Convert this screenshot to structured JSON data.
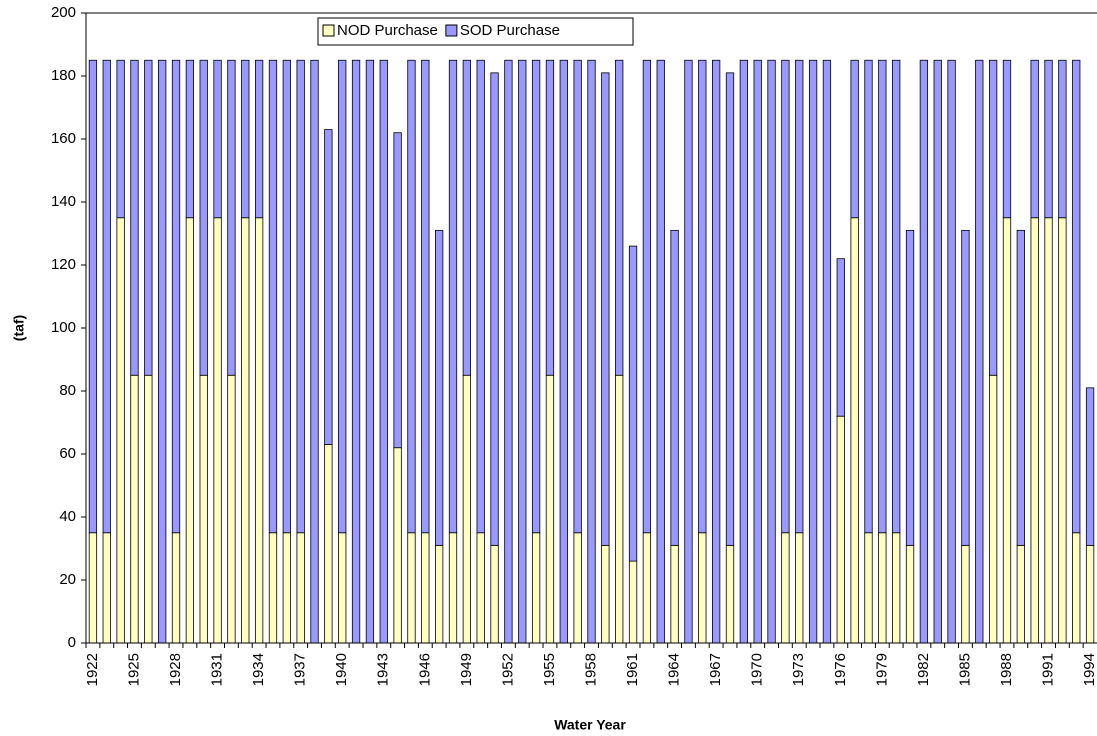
{
  "chart_data": {
    "type": "stacked-bar",
    "x_label": "Water Year",
    "y_label": "(taf)",
    "categories": [
      "1922",
      null,
      null,
      "1925",
      null,
      null,
      "1928",
      null,
      null,
      "1931",
      null,
      null,
      "1934",
      null,
      null,
      "1937",
      null,
      null,
      "1940",
      null,
      null,
      "1943",
      null,
      null,
      "1946",
      null,
      null,
      "1949",
      null,
      null,
      "1952",
      null,
      null,
      "1955",
      null,
      null,
      "1958",
      null,
      null,
      "1961",
      null,
      null,
      "1964",
      null,
      null,
      "1967",
      null,
      null,
      "1970",
      null,
      null,
      "1973",
      null,
      null,
      "1976",
      null,
      null,
      "1979",
      null,
      null,
      "1982",
      null,
      null,
      "1985",
      null,
      null,
      "1988",
      null,
      null,
      "1991",
      null,
      null,
      "1994"
    ],
    "series": [
      {
        "name": "NOD Purchase",
        "color": "#ffffc0",
        "values": [
          35,
          35,
          135,
          85,
          85,
          0,
          35,
          135,
          85,
          135,
          85,
          135,
          135,
          35,
          35,
          35,
          0,
          63,
          35,
          0,
          0,
          0,
          62,
          35,
          35,
          31,
          35,
          85,
          35,
          31,
          0,
          0,
          35,
          85,
          0,
          35,
          0,
          31,
          85,
          26,
          35,
          0,
          31,
          0,
          35,
          0,
          31,
          0,
          0,
          0,
          35,
          35,
          0,
          0,
          72,
          135,
          35,
          35,
          35,
          31,
          0,
          0,
          0,
          31,
          0,
          85,
          135,
          31,
          135,
          135,
          135,
          35,
          31
        ]
      },
      {
        "name": "SOD Purchase",
        "color": "#9999ff",
        "values": [
          150,
          150,
          50,
          100,
          100,
          185,
          150,
          50,
          100,
          50,
          100,
          50,
          50,
          150,
          150,
          150,
          185,
          100,
          150,
          185,
          185,
          185,
          100,
          150,
          150,
          100,
          150,
          100,
          150,
          150,
          185,
          185,
          150,
          100,
          185,
          150,
          185,
          150,
          100,
          100,
          150,
          185,
          100,
          185,
          150,
          185,
          150,
          185,
          185,
          185,
          150,
          150,
          185,
          185,
          50,
          50,
          150,
          150,
          150,
          100,
          185,
          185,
          185,
          100,
          185,
          100,
          50,
          100,
          50,
          50,
          50,
          150,
          50
        ]
      }
    ],
    "ylim": [
      0,
      200
    ],
    "yticks": [
      0,
      20,
      40,
      60,
      80,
      100,
      120,
      140,
      160,
      180,
      200
    ],
    "legend": "top"
  }
}
